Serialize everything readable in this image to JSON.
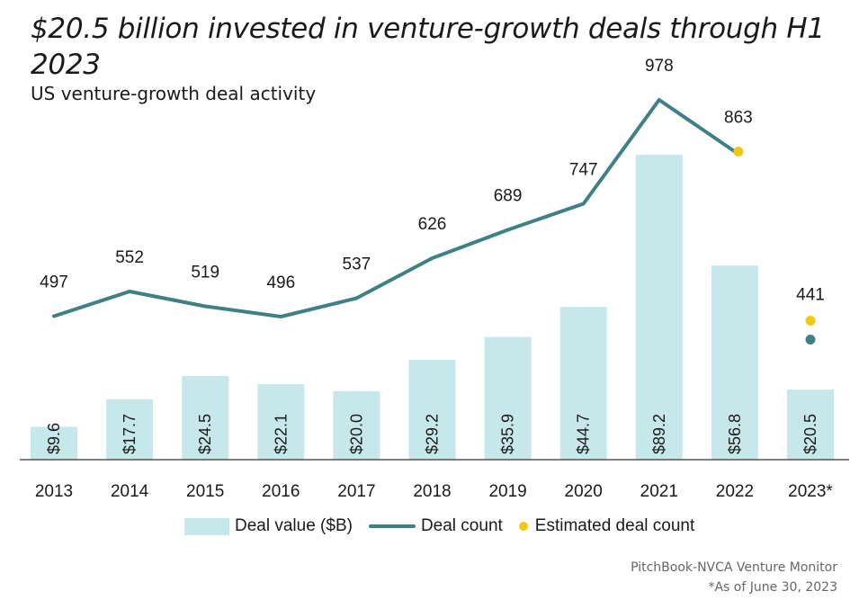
{
  "header": {
    "title": "$20.5 billion invested in venture-growth deals through H1 2023",
    "subtitle": "US venture-growth deal activity"
  },
  "legend": {
    "deal_value": "Deal value ($B)",
    "deal_count": "Deal count",
    "estimated": "Estimated deal count"
  },
  "footer": {
    "source": "PitchBook-NVCA Venture Monitor",
    "note": "*As of June 30, 2023"
  },
  "colors": {
    "bar": "#c7e8ea",
    "line": "#3e8083",
    "estimated": "#f2c715",
    "axis": "#333333"
  },
  "chart_data": {
    "type": "bar",
    "categories": [
      "2013",
      "2014",
      "2015",
      "2016",
      "2017",
      "2018",
      "2019",
      "2020",
      "2021",
      "2022",
      "2023*"
    ],
    "series": [
      {
        "name": "Deal value ($B)",
        "type": "bar",
        "values": [
          9.6,
          17.7,
          24.5,
          22.1,
          20.0,
          29.2,
          35.9,
          44.7,
          89.2,
          56.8,
          20.5
        ],
        "labels": [
          "$9.6",
          "$17.7",
          "$24.5",
          "$22.1",
          "$20.0",
          "$29.2",
          "$35.9",
          "$44.7",
          "$89.2",
          "$56.8",
          "$20.5"
        ]
      },
      {
        "name": "Deal count",
        "type": "line",
        "values": [
          497,
          552,
          519,
          496,
          537,
          626,
          689,
          747,
          978,
          863,
          441
        ],
        "labels": [
          "497",
          "552",
          "519",
          "496",
          "537",
          "626",
          "689",
          "747",
          "978",
          "863",
          "441"
        ]
      },
      {
        "name": "Estimated deal count",
        "type": "scatter",
        "categories": [
          "2022",
          "2023*"
        ],
        "values": [
          863,
          441
        ]
      }
    ],
    "legend_position": "bottom",
    "grid": false
  }
}
